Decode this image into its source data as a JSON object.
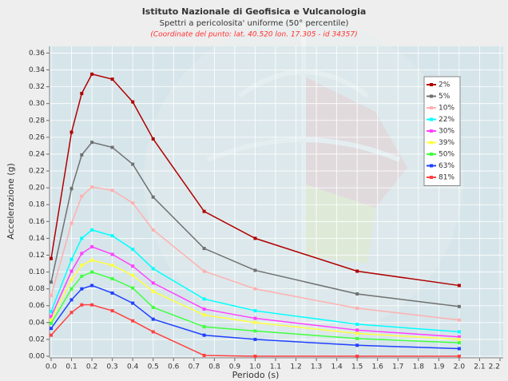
{
  "chart_data": {
    "type": "line",
    "title": "Istituto Nazionale di Geofisica e Vulcanologia",
    "subtitle": "Spettri a pericolosita' uniforme (50° percentile)",
    "annotation": "(Coordinate del punto: lat. 40.520 lon. 17.305 - id 34357)",
    "x_label": "Periodo (s)",
    "y_label": "Accelerazione (g)",
    "x": [
      0,
      0.1,
      0.15,
      0.2,
      0.3,
      0.4,
      0.5,
      0.75,
      1.0,
      1.5,
      2.0
    ],
    "series": [
      {
        "name": "2%",
        "color": "#b00000",
        "values": [
          0.116,
          0.266,
          0.312,
          0.335,
          0.329,
          0.302,
          0.258,
          0.172,
          0.14,
          0.101,
          0.084
        ]
      },
      {
        "name": "5%",
        "color": "#707070",
        "values": [
          0.088,
          0.199,
          0.239,
          0.254,
          0.248,
          0.228,
          0.189,
          0.128,
          0.102,
          0.074,
          0.059
        ]
      },
      {
        "name": "10%",
        "color": "#ffb0b0",
        "values": [
          0.072,
          0.158,
          0.19,
          0.201,
          0.197,
          0.182,
          0.15,
          0.101,
          0.08,
          0.057,
          0.043
        ]
      },
      {
        "name": "22%",
        "color": "#00ffff",
        "values": [
          0.053,
          0.115,
          0.14,
          0.15,
          0.143,
          0.127,
          0.104,
          0.068,
          0.054,
          0.038,
          0.029
        ]
      },
      {
        "name": "30%",
        "color": "#ff40ff",
        "values": [
          0.047,
          0.101,
          0.122,
          0.13,
          0.121,
          0.107,
          0.087,
          0.056,
          0.045,
          0.031,
          0.023
        ]
      },
      {
        "name": "39%",
        "color": "#ffff40",
        "values": [
          0.043,
          0.091,
          0.108,
          0.114,
          0.108,
          0.096,
          0.077,
          0.049,
          0.04,
          0.027,
          0.02
        ]
      },
      {
        "name": "50%",
        "color": "#40ff40",
        "values": [
          0.039,
          0.08,
          0.095,
          0.1,
          0.092,
          0.081,
          0.058,
          0.035,
          0.03,
          0.021,
          0.016
        ]
      },
      {
        "name": "63%",
        "color": "#2040ff",
        "values": [
          0.033,
          0.067,
          0.08,
          0.084,
          0.075,
          0.063,
          0.044,
          0.025,
          0.02,
          0.013,
          0.009
        ]
      },
      {
        "name": "81%",
        "color": "#ff4040",
        "values": [
          0.025,
          0.052,
          0.061,
          0.061,
          0.054,
          0.042,
          0.029,
          0.001,
          0.0,
          0.0,
          0.0
        ]
      }
    ],
    "xlim": [
      0,
      2.2
    ],
    "xticks": [
      {
        "value": 0,
        "label": "0.0"
      },
      0.1,
      0.2,
      0.3,
      0.4,
      0.5,
      0.6,
      0.7,
      0.8,
      0.9,
      {
        "value": 1,
        "label": "1.0"
      },
      1.1,
      1.2,
      1.3,
      1.4,
      1.5,
      1.6,
      1.7,
      1.8,
      1.9,
      {
        "value": 2,
        "label": "2.0"
      },
      2.1,
      2.2
    ],
    "ylim": [
      0,
      0.368
    ],
    "yticks": [
      {
        "value": 0,
        "label": "0.00"
      },
      0.02,
      0.04,
      0.06,
      0.08,
      {
        "value": 0.1,
        "label": "0.10"
      },
      0.12,
      0.14,
      0.16,
      0.18,
      {
        "value": 0.2,
        "label": "0.20"
      },
      0.22,
      0.24,
      0.26,
      0.28,
      {
        "value": 0.3,
        "label": "0.30"
      },
      0.32,
      0.34,
      0.36
    ],
    "grid": true,
    "legend": "upper right"
  }
}
